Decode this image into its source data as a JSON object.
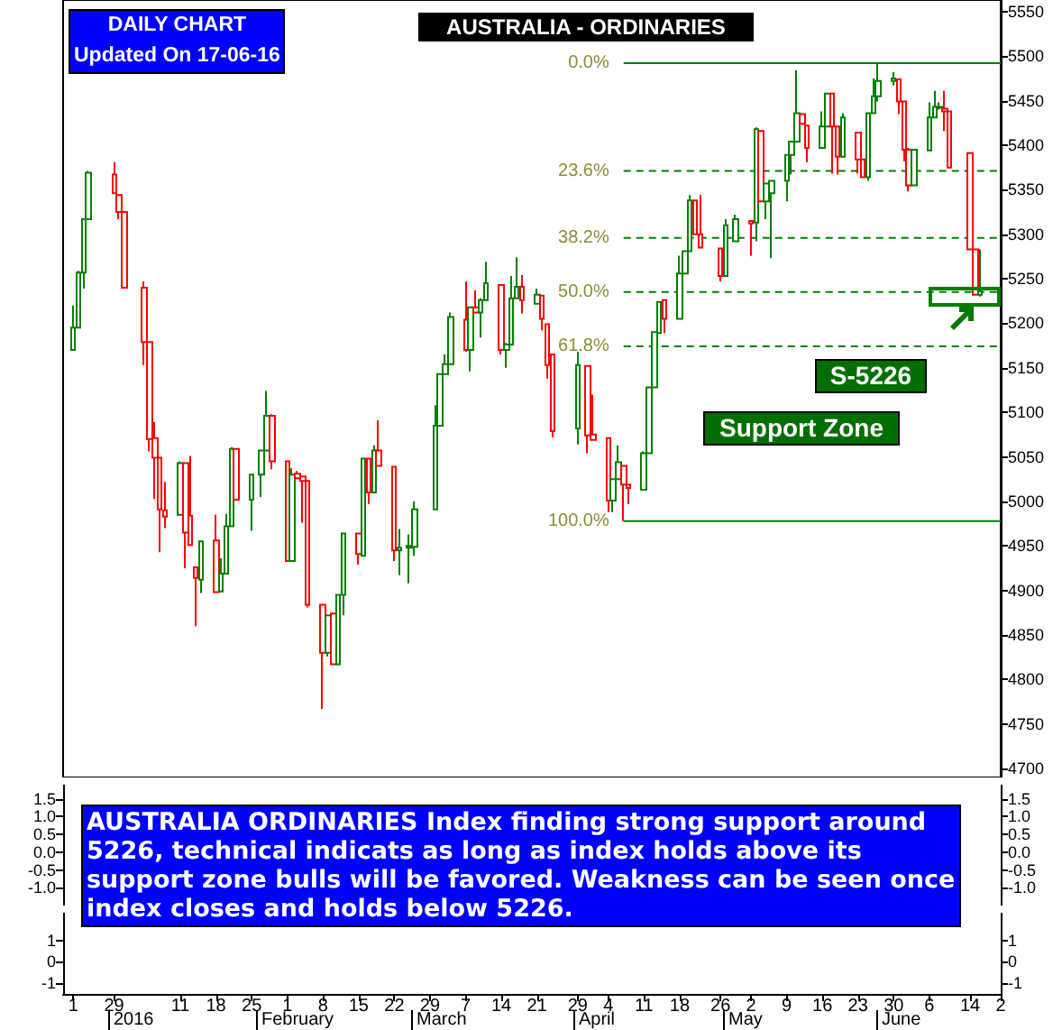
{
  "chart_data": [
    {
      "type": "candlestick",
      "title": "AUSTRALIA - ORDINARIES",
      "x": [
        "2015-12-21",
        "2015-12-22",
        "2015-12-23",
        "2015-12-24",
        "2015-12-29",
        "2015-12-30",
        "2015-12-31",
        "2016-01-04",
        "2016-01-05",
        "2016-01-06",
        "2016-01-07",
        "2016-01-08",
        "2016-01-11",
        "2016-01-12",
        "2016-01-13",
        "2016-01-14",
        "2016-01-15",
        "2016-01-18",
        "2016-01-19",
        "2016-01-20",
        "2016-01-21",
        "2016-01-22",
        "2016-01-25",
        "2016-01-27",
        "2016-01-28",
        "2016-01-29",
        "2016-02-01",
        "2016-02-02",
        "2016-02-03",
        "2016-02-04",
        "2016-02-05",
        "2016-02-08",
        "2016-02-09",
        "2016-02-10",
        "2016-02-11",
        "2016-02-12",
        "2016-02-15",
        "2016-02-16",
        "2016-02-17",
        "2016-02-18",
        "2016-02-19",
        "2016-02-22",
        "2016-02-23",
        "2016-02-25",
        "2016-02-26",
        "2016-03-01",
        "2016-03-02",
        "2016-03-03",
        "2016-03-04",
        "2016-03-07",
        "2016-03-08",
        "2016-03-09",
        "2016-03-10",
        "2016-03-11",
        "2016-03-14",
        "2016-03-15",
        "2016-03-16",
        "2016-03-17",
        "2016-03-18",
        "2016-03-21",
        "2016-03-22",
        "2016-03-23",
        "2016-03-24",
        "2016-03-29",
        "2016-03-31",
        "2016-04-01",
        "2016-04-04",
        "2016-04-05",
        "2016-04-06",
        "2016-04-07",
        "2016-04-08",
        "2016-04-11",
        "2016-04-12",
        "2016-04-13",
        "2016-04-14",
        "2016-04-15",
        "2016-04-18",
        "2016-04-19",
        "2016-04-20",
        "2016-04-21",
        "2016-04-22",
        "2016-04-26",
        "2016-04-27",
        "2016-04-29",
        "2016-05-02",
        "2016-05-03",
        "2016-05-04",
        "2016-05-05",
        "2016-05-06",
        "2016-05-09",
        "2016-05-10",
        "2016-05-11",
        "2016-05-12",
        "2016-05-13",
        "2016-05-16",
        "2016-05-17",
        "2016-05-18",
        "2016-05-19",
        "2016-05-20",
        "2016-05-23",
        "2016-05-24",
        "2016-05-25",
        "2016-05-26",
        "2016-05-27",
        "2016-05-30",
        "2016-05-31",
        "2016-06-01",
        "2016-06-02",
        "2016-06-03",
        "2016-06-06",
        "2016-06-07",
        "2016-06-08",
        "2016-06-09",
        "2016-06-10",
        "2016-06-14",
        "2016-06-15",
        "2016-06-16"
      ],
      "ohlc": [
        [
          5170,
          5220,
          5170,
          5195
        ],
        [
          5195,
          5259,
          5195,
          5257
        ],
        [
          5257,
          5317,
          5239,
          5317
        ],
        [
          5317,
          5371,
          5317,
          5369
        ],
        [
          5367,
          5381,
          5346,
          5346
        ],
        [
          5344,
          5344,
          5317,
          5325
        ],
        [
          5325,
          5325,
          5240,
          5240
        ],
        [
          5240,
          5247,
          5153,
          5179
        ],
        [
          5179,
          5179,
          5056,
          5070
        ],
        [
          5071,
          5089,
          5003,
          5049
        ],
        [
          5049,
          5049,
          4943,
          4991
        ],
        [
          4990,
          5022,
          4970,
          4983
        ],
        [
          4985,
          5045,
          4985,
          5043
        ],
        [
          5043,
          5043,
          4925,
          4965
        ],
        [
          4984,
          5051,
          4951,
          4951
        ],
        [
          4926,
          4926,
          4860,
          4914
        ],
        [
          4912,
          4955,
          4897,
          4955
        ],
        [
          4956,
          4985,
          4898,
          4898
        ],
        [
          4899,
          4936,
          4899,
          4919
        ],
        [
          4919,
          4986,
          4919,
          4972
        ],
        [
          4972,
          5061,
          4972,
          5059
        ],
        [
          5059,
          5059,
          5002,
          5002
        ],
        [
          5002,
          5030,
          4967,
          5030
        ],
        [
          5030,
          5057,
          5005,
          5057
        ],
        [
          5057,
          5124,
          5057,
          5096
        ],
        [
          5096,
          5098,
          5036,
          5045
        ],
        [
          5045,
          5045,
          4933,
          4933
        ],
        [
          4933,
          5037,
          4933,
          5030
        ],
        [
          5031,
          5034,
          5026,
          5026
        ],
        [
          5028,
          5028,
          4976,
          5023
        ],
        [
          5023,
          5023,
          4881,
          4884
        ],
        [
          4884,
          4884,
          4767,
          4830
        ],
        [
          4830,
          4872,
          4826,
          4872
        ],
        [
          4874,
          4874,
          4817,
          4817
        ],
        [
          4817,
          4895,
          4817,
          4895
        ],
        [
          4895,
          4964,
          4872,
          4964
        ],
        [
          4964,
          4964,
          4929,
          4941
        ],
        [
          4939,
          5048,
          4939,
          5048
        ],
        [
          5048,
          5048,
          4997,
          5010
        ],
        [
          5010,
          5063,
          5010,
          5057
        ],
        [
          5057,
          5091,
          5040,
          5040
        ],
        [
          5039,
          5039,
          4933,
          4945
        ],
        [
          4945,
          4969,
          4917,
          4948
        ],
        [
          4948,
          4963,
          4908,
          4950
        ],
        [
          4949,
          5000,
          4939,
          4991
        ],
        [
          4991,
          5108,
          4991,
          5085
        ],
        [
          5085,
          5143,
          5085,
          5143
        ],
        [
          5143,
          5165,
          5143,
          5154
        ],
        [
          5154,
          5212,
          5154,
          5207
        ],
        [
          5204,
          5247,
          5168,
          5170
        ],
        [
          5170,
          5218,
          5146,
          5218
        ],
        [
          5218,
          5237,
          5212,
          5212
        ],
        [
          5212,
          5228,
          5184,
          5226
        ],
        [
          5226,
          5269,
          5226,
          5245
        ],
        [
          5243,
          5243,
          5165,
          5170
        ],
        [
          5170,
          5178,
          5150,
          5176
        ],
        [
          5176,
          5253,
          5176,
          5228
        ],
        [
          5228,
          5274,
          5228,
          5241
        ],
        [
          5241,
          5254,
          5211,
          5226
        ],
        [
          5222,
          5239,
          5222,
          5232
        ],
        [
          5231,
          5231,
          5192,
          5205
        ],
        [
          5199,
          5199,
          5138,
          5153
        ],
        [
          5165,
          5165,
          5072,
          5079
        ],
        [
          5082,
          5168,
          5064,
          5153
        ],
        [
          5152,
          5152,
          5054,
          5074
        ],
        [
          5075,
          5120,
          5069,
          5069
        ],
        [
          5071,
          5071,
          4988,
          5001
        ],
        [
          5001,
          5025,
          4988,
          5025
        ],
        [
          5025,
          5063,
          5025,
          5044
        ],
        [
          5040,
          5040,
          4978,
          5019
        ],
        [
          5019,
          5019,
          4997,
          5015
        ],
        [
          5013,
          5056,
          5013,
          5054
        ],
        [
          5054,
          5128,
          5054,
          5128
        ],
        [
          5128,
          5190,
          5128,
          5190
        ],
        [
          5189,
          5224,
          5189,
          5224
        ],
        [
          5226,
          5226,
          5189,
          5205
        ],
        [
          5205,
          5276,
          5205,
          5256
        ],
        [
          5256,
          5281,
          5256,
          5281
        ],
        [
          5281,
          5344,
          5281,
          5338
        ],
        [
          5338,
          5338,
          5300,
          5300
        ],
        [
          5300,
          5344,
          5285,
          5285
        ],
        [
          5284,
          5284,
          5247,
          5253
        ],
        [
          5253,
          5317,
          5253,
          5310
        ],
        [
          5292,
          5322,
          5292,
          5317
        ],
        [
          5315,
          5315,
          5276,
          5312
        ],
        [
          5313,
          5420,
          5292,
          5418
        ],
        [
          5416,
          5416,
          5337,
          5337
        ],
        [
          5337,
          5357,
          5317,
          5357
        ],
        [
          5346,
          5360,
          5273,
          5360
        ],
        [
          5360,
          5389,
          5337,
          5389
        ],
        [
          5389,
          5404,
          5367,
          5404
        ],
        [
          5404,
          5484,
          5404,
          5436
        ],
        [
          5435,
          5435,
          5424,
          5424
        ],
        [
          5422,
          5422,
          5381,
          5397
        ],
        [
          5397,
          5438,
          5397,
          5421
        ],
        [
          5421,
          5458,
          5421,
          5458
        ],
        [
          5458,
          5458,
          5368,
          5421
        ],
        [
          5421,
          5421,
          5367,
          5387
        ],
        [
          5387,
          5436,
          5387,
          5431
        ],
        [
          5414,
          5414,
          5368,
          5384
        ],
        [
          5384,
          5384,
          5364,
          5364
        ],
        [
          5364,
          5436,
          5360,
          5436
        ],
        [
          5436,
          5475,
          5436,
          5455
        ],
        [
          5455,
          5492,
          5449,
          5472
        ],
        [
          5472,
          5482,
          5467,
          5475
        ],
        [
          5474,
          5474,
          5435,
          5449
        ],
        [
          5449,
          5449,
          5382,
          5395
        ],
        [
          5395,
          5397,
          5348,
          5355
        ],
        [
          5355,
          5395,
          5355,
          5395
        ],
        [
          5394,
          5448,
          5394,
          5431
        ],
        [
          5431,
          5461,
          5431,
          5443
        ],
        [
          5442,
          5448,
          5440,
          5443
        ],
        [
          5441,
          5461,
          5416,
          5438
        ],
        [
          5438,
          5438,
          5375,
          5375
        ],
        [
          5391,
          5391,
          5283,
          5283
        ],
        [
          5283,
          5283,
          5232,
          5232
        ],
        [
          5232,
          5283,
          5230,
          5236
        ]
      ],
      "colors": [
        "#008000",
        "#008000",
        "#008000",
        "#008000",
        "#ff0000",
        "#ff0000",
        "#ff0000",
        "#ff0000",
        "#ff0000",
        "#ff0000",
        "#ff0000",
        "#ff0000",
        "#008000",
        "#ff0000",
        "#ff0000",
        "#ff0000",
        "#008000",
        "#ff0000",
        "#008000",
        "#008000",
        "#008000",
        "#ff0000",
        "#008000",
        "#008000",
        "#008000",
        "#ff0000",
        "#ff0000",
        "#008000",
        "#ff0000",
        "#ff0000",
        "#ff0000",
        "#ff0000",
        "#008000",
        "#ff0000",
        "#008000",
        "#008000",
        "#ff0000",
        "#008000",
        "#ff0000",
        "#008000",
        "#ff0000",
        "#ff0000",
        "#008000",
        "#008000",
        "#008000",
        "#008000",
        "#008000",
        "#008000",
        "#008000",
        "#ff0000",
        "#008000",
        "#ff0000",
        "#008000",
        "#008000",
        "#ff0000",
        "#008000",
        "#008000",
        "#008000",
        "#ff0000",
        "#008000",
        "#ff0000",
        "#ff0000",
        "#ff0000",
        "#008000",
        "#ff0000",
        "#ff0000",
        "#ff0000",
        "#008000",
        "#008000",
        "#ff0000",
        "#ff0000",
        "#008000",
        "#008000",
        "#008000",
        "#008000",
        "#ff0000",
        "#008000",
        "#008000",
        "#008000",
        "#ff0000",
        "#ff0000",
        "#ff0000",
        "#008000",
        "#008000",
        "#ff0000",
        "#008000",
        "#ff0000",
        "#008000",
        "#008000",
        "#008000",
        "#008000",
        "#008000",
        "#ff0000",
        "#ff0000",
        "#008000",
        "#008000",
        "#ff0000",
        "#ff0000",
        "#008000",
        "#ff0000",
        "#ff0000",
        "#008000",
        "#008000",
        "#008000",
        "#008000",
        "#ff0000",
        "#ff0000",
        "#ff0000",
        "#008000",
        "#008000",
        "#008000",
        "#008000",
        "#ff0000",
        "#ff0000",
        "#ff0000",
        "#ff0000",
        "#008000"
      ],
      "series": [
        {
          "type": "line",
          "name": "0.0%",
          "color": "#008000",
          "line_style": "solid",
          "x": [
            "2016-04-07",
            "2016-06-20"
          ],
          "values": [
            5492,
            5492
          ]
        },
        {
          "type": "line",
          "name": "23.6%",
          "color": "#008000",
          "line_style": "dashed",
          "x": [
            "2016-04-07",
            "2016-06-20"
          ],
          "values": [
            5371,
            5371
          ]
        },
        {
          "type": "line",
          "name": "38.2%",
          "color": "#008000",
          "line_style": "dashed",
          "x": [
            "2016-04-07",
            "2016-06-20"
          ],
          "values": [
            5296,
            5296
          ]
        },
        {
          "type": "line",
          "name": "50.0%",
          "color": "#008000",
          "line_style": "dashed",
          "x": [
            "2016-04-07",
            "2016-06-20"
          ],
          "values": [
            5235,
            5235
          ]
        },
        {
          "type": "line",
          "name": "61.8%",
          "color": "#008000",
          "line_style": "dashed",
          "x": [
            "2016-04-07",
            "2016-06-20"
          ],
          "values": [
            5174,
            5174
          ]
        },
        {
          "type": "line",
          "name": "100.0%",
          "color": "#008000",
          "line_style": "solid",
          "x": [
            "2016-04-07",
            "2016-06-20"
          ],
          "values": [
            4978,
            4978
          ]
        }
      ],
      "marker": "none",
      "xlim": [
        "2015-12-19",
        "2016-06-20"
      ],
      "ylim": [
        4690,
        5563
      ],
      "yticks": [
        4700,
        4750,
        4800,
        4850,
        4900,
        4950,
        5000,
        5050,
        5100,
        5150,
        5200,
        5250,
        5300,
        5350,
        5400,
        5450,
        5500,
        5550
      ],
      "tick_labels": "y",
      "annotations": [
        "DAILY CHART",
        "Updated On 17-06-16",
        "S-5226",
        "Support Zone"
      ]
    },
    {
      "type": "line",
      "xlim": [
        "2015-12-19",
        "2016-06-20"
      ],
      "ylim": [
        -1.5,
        1.9
      ],
      "yticks": [
        {
          "value": 1.5,
          "label": "1.5"
        },
        {
          "value": 1,
          "label": "1.0"
        },
        {
          "value": 0.5,
          "label": "0.5"
        },
        {
          "value": 0,
          "label": "0.0"
        },
        {
          "value": -0.5,
          "label": "-0.5"
        },
        {
          "value": -1,
          "label": "-1.0"
        }
      ],
      "y2lim": [
        -1.5,
        1.9
      ],
      "y2ticks": [
        {
          "value": 1.5,
          "label": "1.5"
        },
        {
          "value": 1,
          "label": "1.0"
        },
        {
          "value": 0.5,
          "label": "0.5"
        },
        {
          "value": 0,
          "label": "0.0"
        },
        {
          "value": -0.5,
          "label": "-0.5"
        },
        {
          "value": -1,
          "label": "-1.0"
        }
      ],
      "tick_labels": "y",
      "annotations": [
        "AUSTRALIA ORDINARIES Index finding strong support around 5226, technical indicats as long as index holds above its support zone bulls will be favored. Weakness can be seen once index closes and holds below 5226."
      ]
    },
    {
      "type": "line",
      "xlim": [
        "2015-12-19",
        "2016-06-20"
      ],
      "xticks": [
        {
          "value": "2015-12-21",
          "label": "1"
        },
        {
          "value": "2015-12-29",
          "label": "29"
        },
        {
          "value": "2016-01-11",
          "label": "11"
        },
        {
          "value": "2016-01-18",
          "label": "18"
        },
        {
          "value": "2016-01-25",
          "label": "25"
        },
        {
          "value": "2016-02-01",
          "label": "1"
        },
        {
          "value": "2016-02-08",
          "label": "8"
        },
        {
          "value": "2016-02-15",
          "label": "15"
        },
        {
          "value": "2016-02-22",
          "label": "22"
        },
        {
          "value": "2016-02-29",
          "label": "29"
        },
        {
          "value": "2016-03-07",
          "label": "7"
        },
        {
          "value": "2016-03-14",
          "label": "14"
        },
        {
          "value": "2016-03-21",
          "label": "21"
        },
        {
          "value": "2016-03-29",
          "label": "29"
        },
        {
          "value": "2016-04-04",
          "label": "4"
        },
        {
          "value": "2016-04-11",
          "label": "11"
        },
        {
          "value": "2016-04-18",
          "label": "18"
        },
        {
          "value": "2016-04-26",
          "label": "26"
        },
        {
          "value": "2016-05-02",
          "label": "2"
        },
        {
          "value": "2016-05-09",
          "label": "9"
        },
        {
          "value": "2016-05-16",
          "label": "16"
        },
        {
          "value": "2016-05-23",
          "label": "23"
        },
        {
          "value": "2016-05-30",
          "label": "30"
        },
        {
          "value": "2016-06-06",
          "label": "6"
        },
        {
          "value": "2016-06-14",
          "label": "14"
        },
        {
          "value": "2016-06-20",
          "label": "2"
        }
      ],
      "ylim": [
        -1.5,
        2.3
      ],
      "yticks": [
        1,
        0,
        -1
      ],
      "y2lim": [
        -1.5,
        2.3
      ],
      "y2ticks": [
        1,
        0,
        -1
      ],
      "annotations": [
        "2016",
        "February",
        "March",
        "April",
        "May",
        "June"
      ]
    }
  ]
}
